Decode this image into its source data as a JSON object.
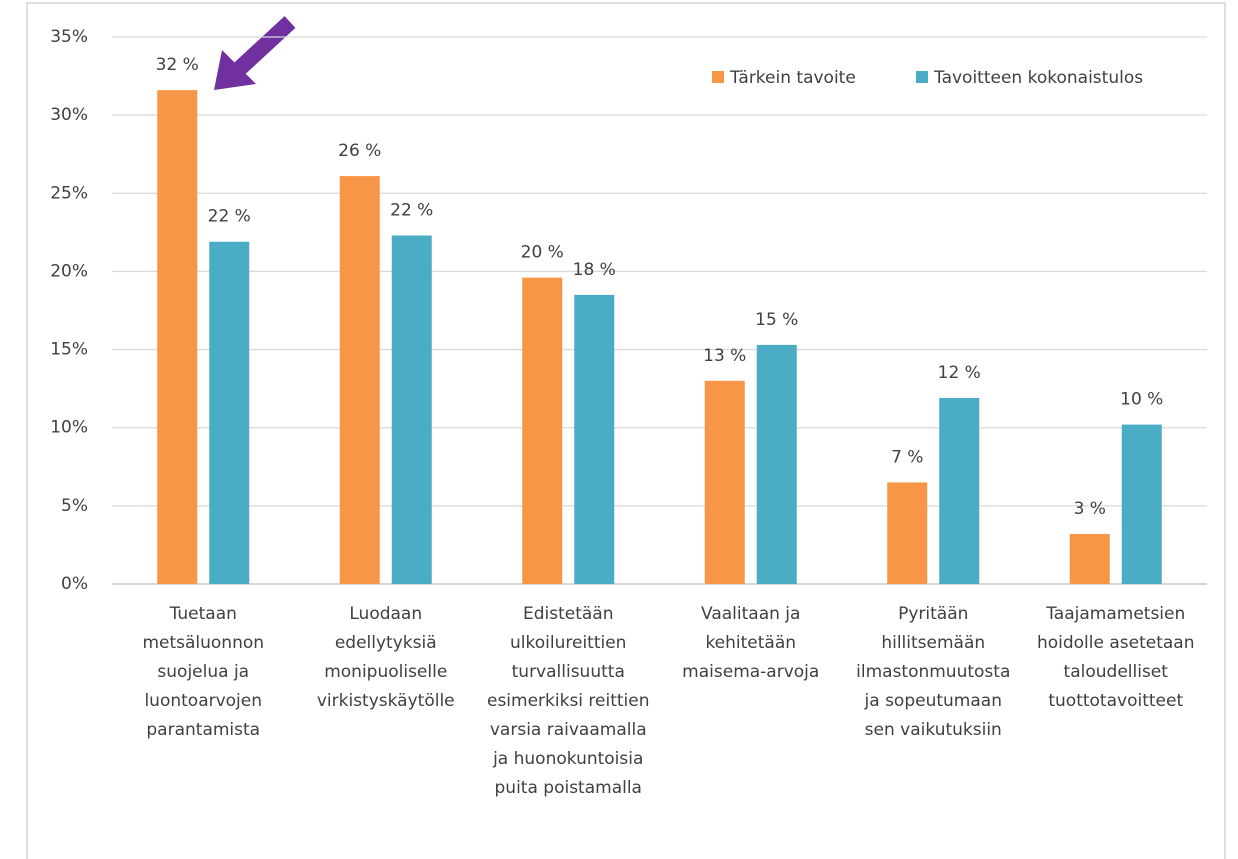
{
  "chart_data": {
    "type": "bar",
    "categories": [
      "Tuetaan metsäluonnon suojelua ja luontoarvojen parantamista",
      "Luodaan edellytyksiä monipuoliselle virkistyskäytölle",
      "Edistetään ulkoilureittien turvallisuutta esimerkiksi reittien varsia raivaamalla ja huonokuntoisia puita poistamalla",
      "Vaalitaan ja kehitetään maisema-arvoja",
      "Pyritään hillitsemään ilmastonmuutosta ja sopeutumaan sen vaikutuksiin",
      "Taajamametsien hoidolle asetetaan taloudelliset tuottotavoitteet"
    ],
    "series": [
      {
        "name": "Tärkein tavoite",
        "color": "#f79646",
        "values": [
          31.6,
          26.1,
          19.6,
          13.0,
          6.5,
          3.2
        ],
        "value_labels": [
          "32 %",
          "26 %",
          "20 %",
          "13 %",
          "7 %",
          "3 %"
        ]
      },
      {
        "name": "Tavoitteen kokonaistulos",
        "color": "#4bacc6",
        "values": [
          21.9,
          22.3,
          18.5,
          15.3,
          11.9,
          10.2
        ],
        "value_labels": [
          "22 %",
          "22 %",
          "18 %",
          "15 %",
          "12 %",
          "10 %"
        ]
      }
    ],
    "ylim": [
      0,
      35
    ],
    "yticks": [
      {
        "value": 0,
        "label": "0%"
      },
      {
        "value": 5,
        "label": "5%"
      },
      {
        "value": 10,
        "label": "10%"
      },
      {
        "value": 15,
        "label": "15%"
      },
      {
        "value": 20,
        "label": "20%"
      },
      {
        "value": 25,
        "label": "25%"
      },
      {
        "value": 30,
        "label": "30%"
      },
      {
        "value": 35,
        "label": "35%"
      }
    ],
    "grid": true,
    "legend": "upper right"
  }
}
